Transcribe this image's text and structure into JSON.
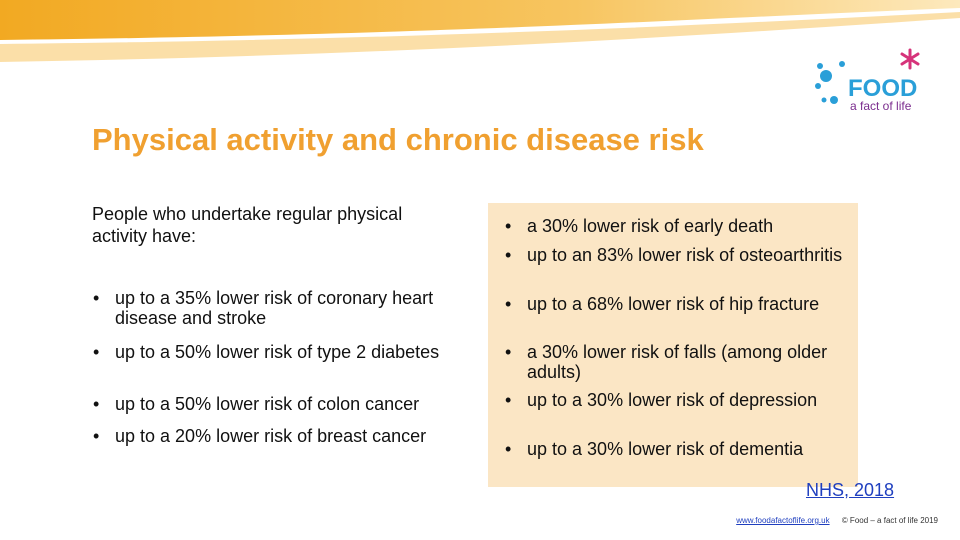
{
  "slide": {
    "title": "Physical activity and chronic disease risk",
    "intro": "People who undertake regular physical activity have:",
    "left_items": [
      "up to a 35% lower risk of coronary heart disease and stroke",
      "up to a 50% lower risk of type 2 diabetes",
      "up to a 50% lower risk of colon cancer",
      "up to a 20% lower risk of breast cancer"
    ],
    "right_items": [
      "a 30% lower risk of early death",
      "up to an 83% lower risk of osteoarthritis",
      "up to a 68% lower risk of hip fracture",
      "a 30% lower risk of falls (among older adults)",
      "up to a 30% lower risk of depression",
      "up to a 30% lower risk of dementia"
    ],
    "reference": "NHS, 2018",
    "footer_link": "www.foodafactoflife.org.uk",
    "footer_copyright": "© Food – a fact of life 2019"
  },
  "logo": {
    "word": "FOOD",
    "tagline": "a fact of life"
  },
  "colors": {
    "title": "#f0a030",
    "box": "#fbe6c5",
    "swoosh": "#f5b93a",
    "logo_blue": "#2a9fd8",
    "logo_purple": "#7b2d8e",
    "logo_magenta": "#d6337a"
  }
}
